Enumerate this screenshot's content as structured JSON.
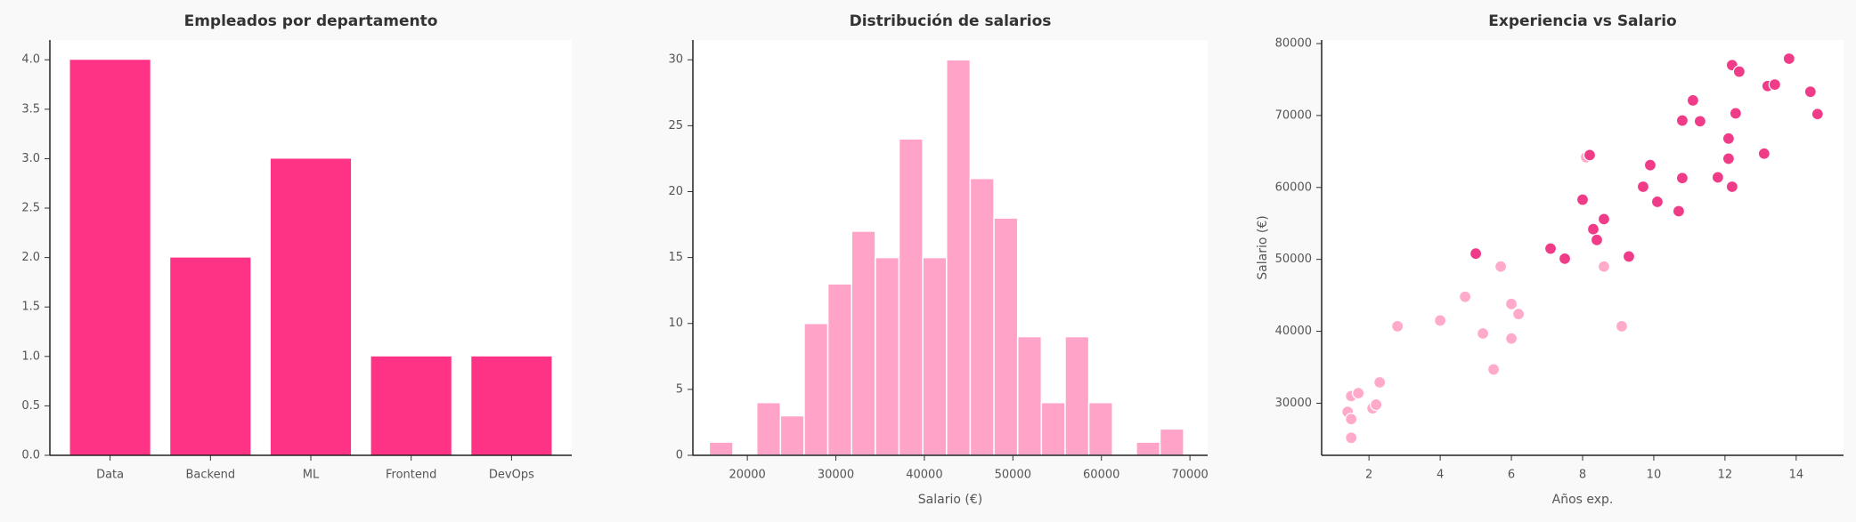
{
  "chart_data": [
    {
      "type": "bar",
      "title": "Empleados por departamento",
      "categories": [
        "Data",
        "Backend",
        "ML",
        "Frontend",
        "DevOps"
      ],
      "values": [
        4,
        2,
        3,
        1,
        1
      ],
      "color": "#ff3385",
      "ylim": [
        0,
        4.2
      ],
      "yticks": [
        {
          "value": 0,
          "label": "0.0"
        },
        {
          "value": 0.5,
          "label": "0.5"
        },
        {
          "value": 1,
          "label": "1.0"
        },
        {
          "value": 1.5,
          "label": "1.5"
        },
        {
          "value": 2,
          "label": "2.0"
        },
        {
          "value": 2.5,
          "label": "2.5"
        },
        {
          "value": 3,
          "label": "3.0"
        },
        {
          "value": 3.5,
          "label": "3.5"
        },
        {
          "value": 4,
          "label": "4.0"
        }
      ]
    },
    {
      "type": "histogram",
      "title": "Distribución de salarios",
      "xlabel": "Salario (€)",
      "bins": [
        15700,
        18380,
        21060,
        23740,
        26420,
        29100,
        31780,
        34460,
        37140,
        39820,
        42500,
        45180,
        47860,
        50540,
        53220,
        55900,
        58580,
        61260,
        63940,
        66620,
        69300
      ],
      "values": [
        1,
        0,
        4,
        3,
        10,
        13,
        17,
        15,
        24,
        15,
        30,
        21,
        18,
        9,
        4,
        9,
        4,
        0,
        1,
        2
      ],
      "color": "#ffa3c8",
      "xlim": [
        13850,
        72000
      ],
      "xticks": [
        20000,
        30000,
        40000,
        50000,
        60000,
        70000
      ],
      "ylim": [
        0,
        31.5
      ],
      "yticks": [
        0,
        5,
        10,
        15,
        20,
        25,
        30
      ]
    },
    {
      "type": "scatter",
      "title": "Experiencia vs Salario",
      "xlabel": "Años exp.",
      "ylabel": "Salario (€)",
      "series": [
        {
          "color": "#ffaacb",
          "x": [
            1.4,
            1.5,
            1.5,
            1.5,
            1.7,
            2.1,
            2.2,
            2.3,
            2.8,
            4.0,
            4.7,
            5.2,
            5.5,
            5.7,
            6.0,
            6.0,
            6.2,
            8.6,
            9.1,
            8.1
          ],
          "values": [
            28800,
            27800,
            25200,
            31000,
            31400,
            29300,
            29800,
            32900,
            40700,
            41500,
            44800,
            39700,
            34700,
            49000,
            43800,
            39000,
            42400,
            49000,
            40700,
            64200
          ]
        },
        {
          "color": "#f03c88",
          "x": [
            5.0,
            7.1,
            7.5,
            8.0,
            8.2,
            8.3,
            8.4,
            8.6,
            9.3,
            9.7,
            9.9,
            10.1,
            10.7,
            10.8,
            10.8,
            11.1,
            11.3,
            11.8,
            12.1,
            12.1,
            12.2,
            12.2,
            12.3,
            12.4,
            13.1,
            13.2,
            13.4,
            13.8,
            14.4,
            14.6
          ],
          "values": [
            50800,
            51500,
            50100,
            58300,
            64500,
            54200,
            52700,
            55600,
            50400,
            60100,
            63100,
            58000,
            56700,
            69300,
            61300,
            72100,
            69200,
            61400,
            66800,
            64000,
            60100,
            77000,
            70300,
            76100,
            64700,
            74100,
            74300,
            77900,
            73300,
            70200
          ]
        }
      ],
      "xlim": [
        0.67,
        15.33
      ],
      "xticks": [
        2,
        4,
        6,
        8,
        10,
        12,
        14
      ],
      "ylim": [
        22763,
        80493
      ],
      "yticks": [
        30000,
        40000,
        50000,
        60000,
        70000,
        80000
      ]
    }
  ]
}
